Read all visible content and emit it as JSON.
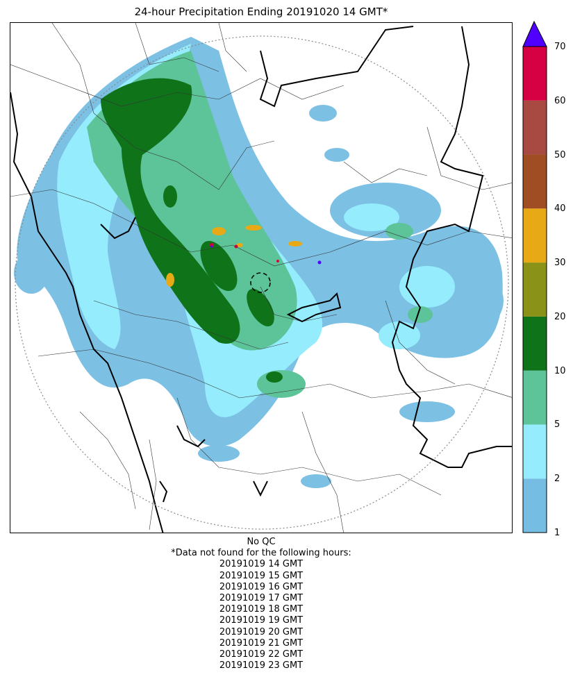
{
  "title": "24-hour Precipitation Ending 20191020 14 GMT*",
  "colorbar": {
    "ticks": [
      "1",
      "2",
      "5",
      "10",
      "20",
      "30",
      "40",
      "50",
      "60",
      "70"
    ],
    "colors": [
      "#75bde3",
      "#94ecfc",
      "#5dc399",
      "#0f7319",
      "#8a9218",
      "#e8a917",
      "#a14d24",
      "#a84a42",
      "#d50142"
    ],
    "extend_color": "#5000ff"
  },
  "footer": {
    "qc": "No QC",
    "note": "*Data not found for the following hours:",
    "hours": [
      "20191019 14 GMT",
      "20191019 15 GMT",
      "20191019 16 GMT",
      "20191019 17 GMT",
      "20191019 18 GMT",
      "20191019 19 GMT",
      "20191019 20 GMT",
      "20191019 21 GMT",
      "20191019 22 GMT",
      "20191019 23 GMT"
    ]
  }
}
